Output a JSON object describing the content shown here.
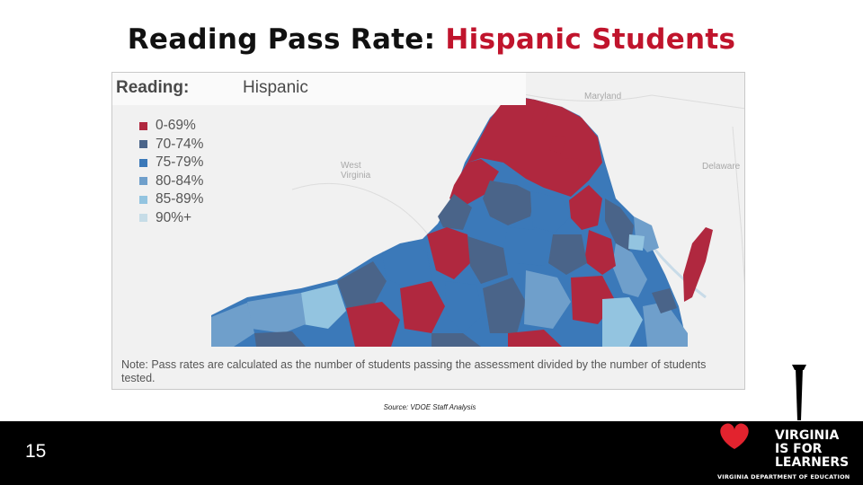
{
  "slide": {
    "title_prefix": "Reading Pass Rate: ",
    "title_highlight": "Hispanic Students",
    "source": "Source: VDOE Staff Analysis",
    "page_number": "15"
  },
  "map": {
    "header_label": "Reading:",
    "subgroup": "Hispanic",
    "legend": [
      {
        "label": "0-69%",
        "color": "#b0283f"
      },
      {
        "label": "70-74%",
        "color": "#4a6489"
      },
      {
        "label": "75-79%",
        "color": "#3b79b9"
      },
      {
        "label": "80-84%",
        "color": "#6f9fcb"
      },
      {
        "label": "85-89%",
        "color": "#93c4e0"
      },
      {
        "label": "90%+",
        "color": "#c6dce7"
      }
    ],
    "geo_labels": {
      "west_virginia_line1": "West",
      "west_virginia_line2": "Virginia",
      "maryland": "Maryland",
      "delaware": "Delaware"
    },
    "note": "Note: Pass rates are calculated as the number of students passing the assessment divided by the number of students tested."
  },
  "logo": {
    "line1": "VIRGINIA",
    "line2": "IS FOR",
    "line3": "LEARNERS",
    "department": "VIRGINIA DEPARTMENT OF EDUCATION",
    "heart_color": "#e2232e"
  }
}
